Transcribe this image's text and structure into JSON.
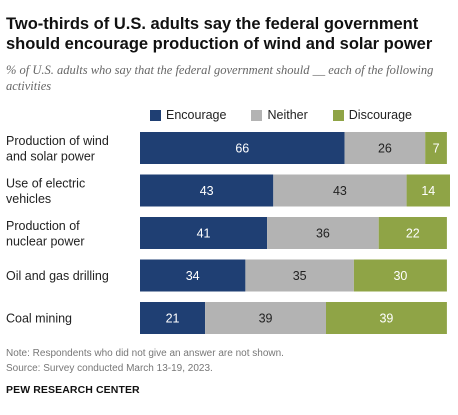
{
  "title": "Two-thirds of U.S. adults say the federal government should encourage production of wind and solar power",
  "subtitle": "% of U.S. adults who say that the federal government should __ each of the following activities",
  "legend": [
    {
      "label": "Encourage",
      "color": "#1f3f73"
    },
    {
      "label": "Neither",
      "color": "#b3b3b3"
    },
    {
      "label": "Discourage",
      "color": "#8fa446"
    }
  ],
  "chart_data": {
    "type": "bar",
    "orientation": "horizontal",
    "stacked": true,
    "categories": [
      [
        "Production of wind",
        "and solar power"
      ],
      [
        "Use of electric",
        "vehicles"
      ],
      [
        "Production of",
        "nuclear power"
      ],
      [
        "Oil and gas drilling"
      ],
      [
        "Coal mining"
      ]
    ],
    "series": [
      {
        "name": "Encourage",
        "values": [
          66,
          43,
          41,
          34,
          21
        ],
        "color": "#1f3f73"
      },
      {
        "name": "Neither",
        "values": [
          26,
          43,
          36,
          35,
          39
        ],
        "color": "#b3b3b3"
      },
      {
        "name": "Discourage",
        "values": [
          7,
          14,
          22,
          30,
          39
        ],
        "color": "#8fa446"
      }
    ],
    "xlim": [
      0,
      100
    ],
    "legend_position": "top",
    "grid": false
  },
  "note": "Note: Respondents who did not give an answer are not shown.",
  "source": "Source: Survey conducted March 13-19, 2023.",
  "org": "PEW RESEARCH CENTER"
}
